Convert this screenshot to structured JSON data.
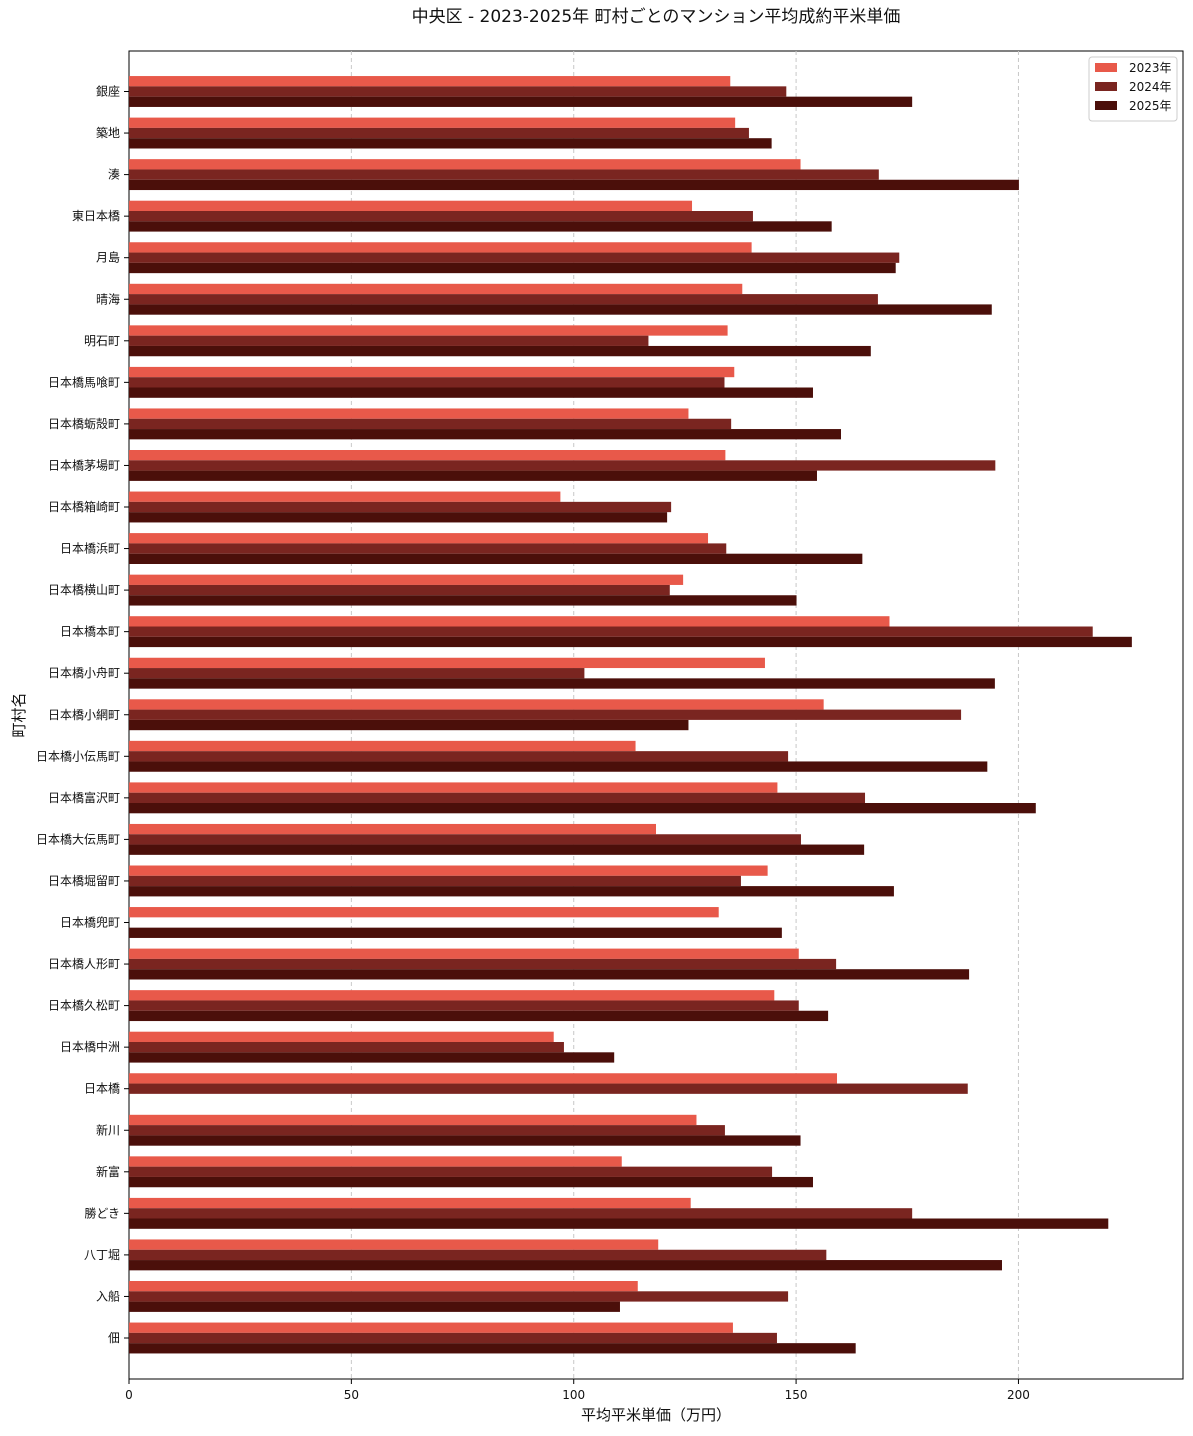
{
  "chart_data": {
    "type": "bar",
    "orientation": "horizontal",
    "title": "中央区 - 2023-2025年 町村ごとのマンション平均成約平米単価",
    "xlabel": "平均平米単価（万円）",
    "ylabel": "町村名",
    "xlim": [
      0,
      237
    ],
    "xticks": [
      0,
      50,
      100,
      150,
      200
    ],
    "grid": "x-dashed",
    "legend_position": "top-right",
    "categories": [
      "銀座",
      "築地",
      "湊",
      "東日本橋",
      "月島",
      "晴海",
      "明石町",
      "日本橋馬喰町",
      "日本橋蛎殻町",
      "日本橋茅場町",
      "日本橋箱崎町",
      "日本橋浜町",
      "日本橋横山町",
      "日本橋本町",
      "日本橋小舟町",
      "日本橋小網町",
      "日本橋小伝馬町",
      "日本橋富沢町",
      "日本橋大伝馬町",
      "日本橋堀留町",
      "日本橋兜町",
      "日本橋人形町",
      "日本橋久松町",
      "日本橋中洲",
      "日本橋",
      "新川",
      "新富",
      "勝どき",
      "八丁堀",
      "入船",
      "佃"
    ],
    "series": [
      {
        "name": "2023年",
        "color": "#e8594a",
        "values": [
          135.2,
          136.3,
          151.0,
          126.6,
          140.0,
          137.9,
          134.6,
          136.1,
          125.8,
          134.1,
          97.0,
          130.2,
          124.6,
          171.0,
          143.0,
          156.2,
          113.9,
          145.8,
          118.5,
          143.6,
          132.6,
          150.6,
          145.1,
          95.5,
          159.2,
          127.6,
          110.8,
          126.3,
          119.0,
          114.4,
          135.8
        ]
      },
      {
        "name": "2024年",
        "color": "#7a2520",
        "values": [
          147.8,
          139.4,
          168.6,
          140.3,
          173.2,
          168.4,
          116.8,
          133.9,
          135.4,
          194.8,
          121.9,
          134.3,
          121.6,
          216.7,
          102.4,
          187.1,
          148.2,
          165.5,
          151.1,
          137.6,
          null,
          159.0,
          150.6,
          97.8,
          188.6,
          134.0,
          144.6,
          176.1,
          156.8,
          148.2,
          145.7
        ]
      },
      {
        "name": "2025年",
        "color": "#4b0f0a",
        "values": [
          176.1,
          144.5,
          200.1,
          158.0,
          172.4,
          194.0,
          166.8,
          153.8,
          160.1,
          154.7,
          121.0,
          164.9,
          150.1,
          225.5,
          194.7,
          125.8,
          193.0,
          203.9,
          165.3,
          172.0,
          146.8,
          188.9,
          157.2,
          109.1,
          null,
          151.0,
          153.8,
          220.2,
          196.3,
          110.4,
          163.4
        ]
      }
    ]
  }
}
